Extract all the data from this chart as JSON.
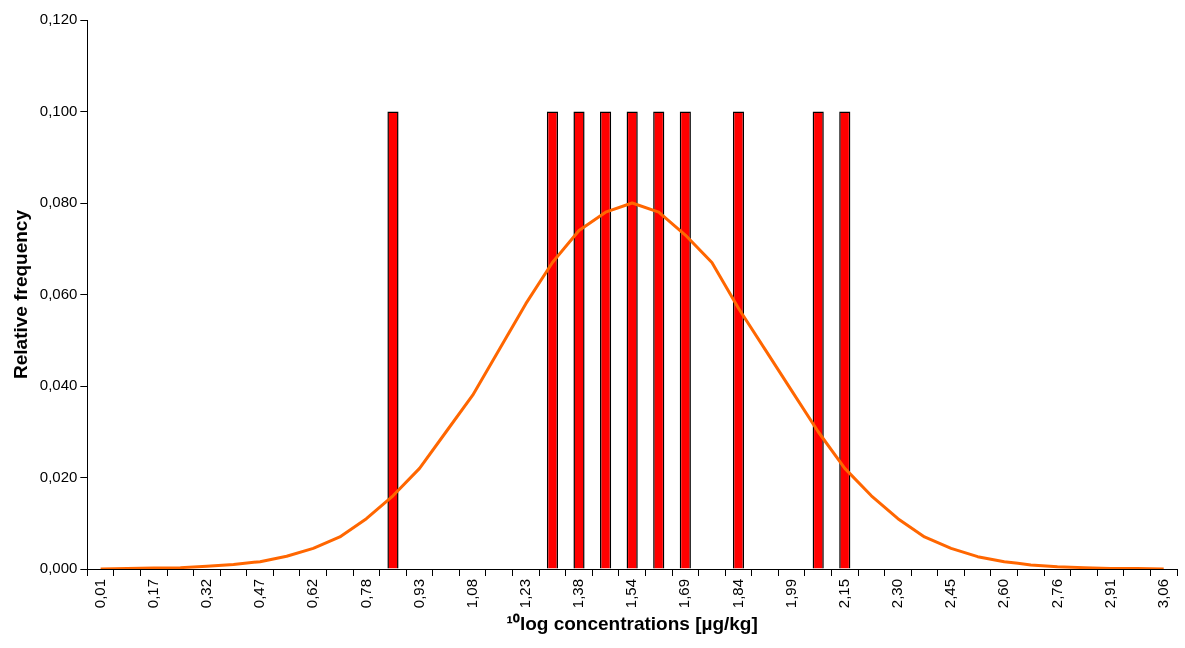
{
  "chart_data": {
    "type": "bar",
    "xlabel": "¹⁰log concentrations [µg/kg]",
    "ylabel": "Relative frequency",
    "categories": [
      "0,01",
      null,
      "0,17",
      null,
      "0,32",
      null,
      "0,47",
      null,
      "0,62",
      null,
      "0,78",
      null,
      "0,93",
      null,
      "1,08",
      null,
      "1,23",
      null,
      "1,38",
      null,
      "1,54",
      null,
      "1,69",
      null,
      "1,84",
      null,
      "1,99",
      null,
      "2,15",
      null,
      "2,30",
      null,
      "2,45",
      null,
      "2,60",
      null,
      "2,76",
      null,
      "2,91",
      null,
      "3,06"
    ],
    "series": [
      {
        "color": "#ff0000",
        "values": [
          0,
          0,
          0,
          0,
          0,
          0,
          0,
          0,
          0,
          0,
          0,
          0.1,
          0,
          0,
          0,
          0,
          0,
          0.1,
          0.1,
          0.1,
          0.1,
          0.1,
          0.1,
          0,
          0.1,
          0,
          0,
          0.1,
          0.1,
          0,
          0,
          0,
          0,
          0,
          0,
          0,
          0,
          0,
          0,
          0,
          0
        ]
      },
      {
        "type": "line",
        "color": "#ff6600",
        "values": [
          0,
          0.0001,
          0.0002,
          0.0003,
          0.0006,
          0.001,
          0.0016,
          0.0028,
          0.0045,
          0.007,
          0.011,
          0.016,
          0.022,
          0.03,
          0.038,
          0.048,
          0.058,
          0.067,
          0.074,
          0.078,
          0.08,
          0.078,
          0.073,
          0.067,
          0.057,
          0.048,
          0.039,
          0.03,
          0.022,
          0.016,
          0.011,
          0.007,
          0.0045,
          0.0027,
          0.0016,
          0.0009,
          0.0005,
          0.0003,
          0.0001,
          0.0001,
          0
        ]
      }
    ],
    "ylim": [
      0,
      0.12
    ],
    "yticks": [
      {
        "value": 0,
        "label": "0,000"
      },
      {
        "value": 0.02,
        "label": "0,020"
      },
      {
        "value": 0.04,
        "label": "0,040"
      },
      {
        "value": 0.06,
        "label": "0,060"
      },
      {
        "value": 0.08,
        "label": "0,080"
      },
      {
        "value": 0.1,
        "label": "0,100"
      },
      {
        "value": 0.12,
        "label": "0,120"
      }
    ],
    "marker": "none",
    "legend": false
  }
}
